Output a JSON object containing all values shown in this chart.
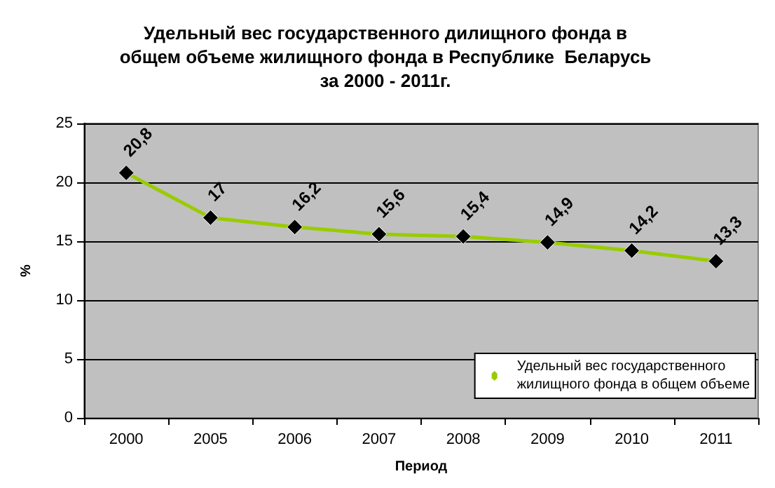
{
  "chart_data": {
    "type": "line",
    "title": "Удельный вес государственного дилищного фонда в\nобщем объеме жилищного фонда в Республике  Беларусь\nза 2000 - 2011г.",
    "xlabel": "Период",
    "ylabel": "%",
    "categories": [
      "2000",
      "2005",
      "2006",
      "2007",
      "2008",
      "2009",
      "2010",
      "2011"
    ],
    "series": [
      {
        "name": "Удельный вес государственного\nжилищного фонда в общем объеме",
        "color": "#99cc00",
        "values": [
          20.8,
          17,
          16.2,
          15.6,
          15.4,
          14.9,
          14.2,
          13.3
        ],
        "value_labels": [
          "20,8",
          "17",
          "16,2",
          "15,6",
          "15,4",
          "14,9",
          "14,2",
          "13,3"
        ]
      }
    ],
    "ylim": [
      0,
      25
    ],
    "yticks": [
      0,
      5,
      10,
      15,
      20,
      25
    ],
    "grid": "y",
    "legend": "bottom right",
    "marker": "diamond",
    "line_style": "solid"
  }
}
